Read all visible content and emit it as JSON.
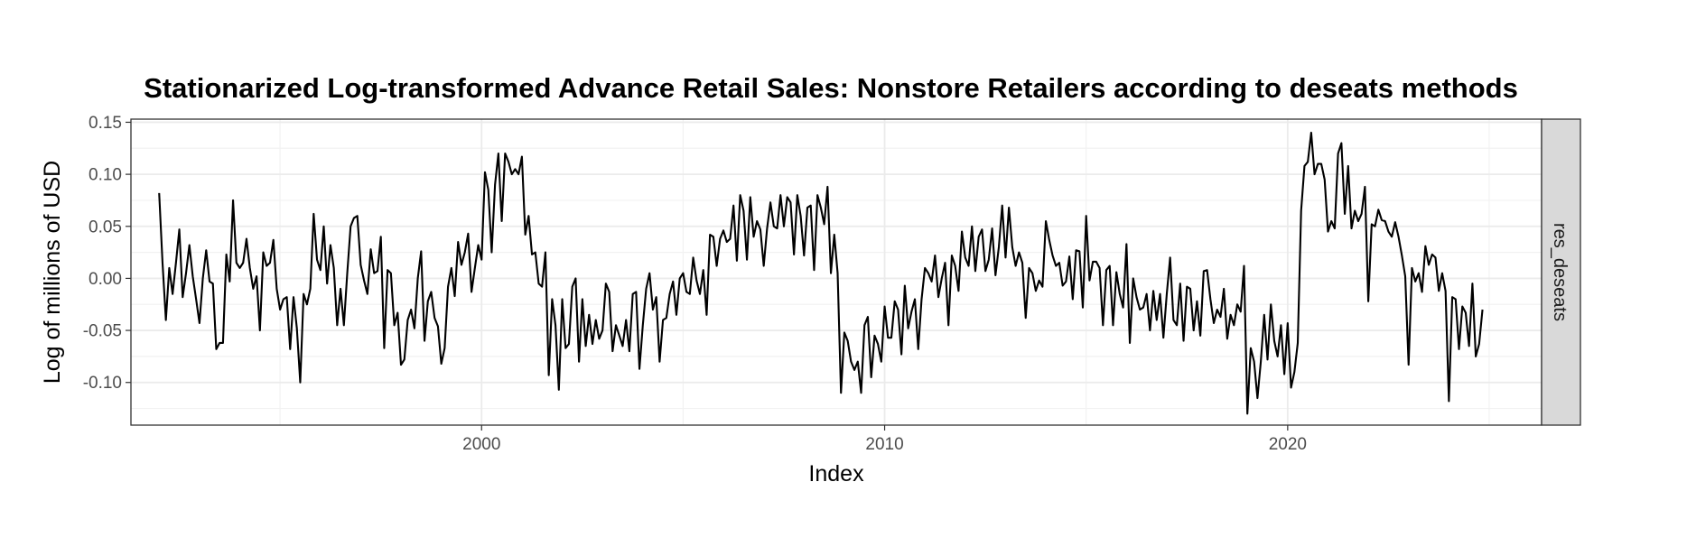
{
  "chart_data": {
    "type": "line",
    "title": "Stationarized Log-transformed Advance Retail Sales: Nonstore Retailers according to deseats methods",
    "xlabel": "Index",
    "ylabel": "Log of millions of USD",
    "facet_label": "res_deseats",
    "x_ticks": [
      2000,
      2010,
      2020
    ],
    "y_ticks": [
      -0.1,
      -0.05,
      0.0,
      0.05,
      0.1,
      0.15
    ],
    "y_tick_labels": [
      "-0.10",
      "-0.05",
      "0.00",
      "0.05",
      "0.10",
      "0.15"
    ],
    "xlim": [
      1991.3,
      2026.3
    ],
    "ylim": [
      -0.141,
      0.153
    ],
    "grid": true,
    "theme": "bw",
    "colors": {
      "line": "#000000",
      "grid": "#ebebeb",
      "strip_fill": "#d9d9d9",
      "border": "#333333"
    },
    "series": [
      {
        "start": 1992.0,
        "step": 0.0833333,
        "values": [
          0.082,
          0.015,
          -0.04,
          0.01,
          -0.015,
          0.015,
          0.047,
          -0.018,
          0.005,
          0.032,
          0.002,
          -0.02,
          -0.043,
          0.0,
          0.027,
          -0.003,
          -0.005,
          -0.068,
          -0.062,
          -0.062,
          0.023,
          -0.003,
          0.075,
          0.015,
          0.01,
          0.015,
          0.038,
          0.01,
          -0.01,
          0.002,
          -0.05,
          0.025,
          0.012,
          0.015,
          0.037,
          -0.01,
          -0.03,
          -0.02,
          -0.018,
          -0.068,
          -0.018,
          -0.048,
          -0.1,
          -0.015,
          -0.025,
          -0.01,
          0.062,
          0.018,
          0.008,
          0.05,
          -0.005,
          0.032,
          0.01,
          -0.045,
          -0.01,
          -0.045,
          0.005,
          0.05,
          0.058,
          0.06,
          0.013,
          -0.002,
          -0.015,
          0.028,
          0.005,
          0.007,
          0.04,
          -0.067,
          0.008,
          0.005,
          -0.045,
          -0.033,
          -0.083,
          -0.078,
          -0.04,
          -0.03,
          -0.048,
          0.0,
          0.026,
          -0.06,
          -0.022,
          -0.013,
          -0.038,
          -0.046,
          -0.082,
          -0.067,
          -0.008,
          0.01,
          -0.017,
          0.035,
          0.013,
          0.025,
          0.043,
          -0.013,
          0.01,
          0.032,
          0.018,
          0.102,
          0.085,
          0.025,
          0.09,
          0.12,
          0.055,
          0.12,
          0.112,
          0.1,
          0.105,
          0.1,
          0.117,
          0.042,
          0.06,
          0.023,
          0.025,
          -0.005,
          -0.008,
          0.025,
          -0.093,
          -0.02,
          -0.045,
          -0.107,
          -0.02,
          -0.067,
          -0.063,
          -0.008,
          0.0,
          -0.08,
          -0.02,
          -0.065,
          -0.035,
          -0.063,
          -0.04,
          -0.058,
          -0.05,
          -0.005,
          -0.013,
          -0.07,
          -0.045,
          -0.055,
          -0.065,
          -0.04,
          -0.07,
          -0.015,
          -0.013,
          -0.087,
          -0.045,
          -0.01,
          0.005,
          -0.03,
          -0.018,
          -0.08,
          -0.04,
          -0.038,
          -0.015,
          -0.003,
          -0.035,
          0.0,
          0.005,
          -0.013,
          -0.015,
          0.02,
          -0.002,
          -0.015,
          0.008,
          -0.035,
          0.042,
          0.04,
          0.012,
          0.038,
          0.046,
          0.035,
          0.038,
          0.07,
          0.017,
          0.08,
          0.065,
          0.018,
          0.078,
          0.04,
          0.055,
          0.047,
          0.012,
          0.048,
          0.073,
          0.05,
          0.048,
          0.08,
          0.05,
          0.078,
          0.073,
          0.023,
          0.08,
          0.06,
          0.022,
          0.068,
          0.07,
          0.008,
          0.08,
          0.068,
          0.052,
          0.088,
          0.005,
          0.042,
          0.005,
          -0.11,
          -0.052,
          -0.06,
          -0.08,
          -0.088,
          -0.08,
          -0.11,
          -0.045,
          -0.037,
          -0.095,
          -0.055,
          -0.063,
          -0.08,
          -0.027,
          -0.057,
          -0.057,
          -0.022,
          -0.03,
          -0.073,
          -0.007,
          -0.048,
          -0.032,
          -0.02,
          -0.068,
          -0.02,
          0.01,
          0.005,
          -0.003,
          0.022,
          -0.018,
          0.0,
          0.015,
          -0.045,
          0.022,
          0.012,
          -0.012,
          0.045,
          0.02,
          0.012,
          0.05,
          0.007,
          0.04,
          0.047,
          0.007,
          0.018,
          0.048,
          0.003,
          0.03,
          0.07,
          0.02,
          0.068,
          0.03,
          0.012,
          0.025,
          0.015,
          -0.038,
          0.01,
          0.005,
          -0.012,
          -0.002,
          -0.008,
          0.055,
          0.037,
          0.022,
          0.012,
          0.015,
          -0.007,
          -0.003,
          0.021,
          -0.02,
          0.027,
          0.026,
          -0.028,
          0.06,
          -0.002,
          0.016,
          0.016,
          0.01,
          -0.045,
          0.008,
          0.012,
          -0.045,
          0.006,
          -0.015,
          -0.028,
          0.033,
          -0.062,
          0.0,
          -0.018,
          -0.03,
          -0.028,
          -0.015,
          -0.05,
          -0.012,
          -0.04,
          -0.015,
          -0.057,
          -0.015,
          0.02,
          -0.04,
          -0.045,
          -0.005,
          -0.06,
          -0.008,
          -0.01,
          -0.05,
          -0.022,
          -0.055,
          0.007,
          0.008,
          -0.02,
          -0.043,
          -0.03,
          -0.037,
          -0.01,
          -0.058,
          -0.035,
          -0.045,
          -0.025,
          -0.032,
          0.012,
          -0.13,
          -0.067,
          -0.08,
          -0.115,
          -0.08,
          -0.035,
          -0.078,
          -0.025,
          -0.06,
          -0.075,
          -0.045,
          -0.092,
          -0.043,
          -0.105,
          -0.09,
          -0.062,
          0.065,
          0.108,
          0.112,
          0.14,
          0.1,
          0.11,
          0.11,
          0.095,
          0.045,
          0.055,
          0.048,
          0.12,
          0.13,
          0.062,
          0.108,
          0.048,
          0.065,
          0.055,
          0.062,
          0.088,
          -0.022,
          0.052,
          0.05,
          0.066,
          0.056,
          0.055,
          0.045,
          0.04,
          0.054,
          0.04,
          0.022,
          0.002,
          -0.083,
          0.01,
          -0.003,
          0.005,
          -0.013,
          0.031,
          0.013,
          0.023,
          0.02,
          -0.012,
          0.005,
          -0.012,
          -0.118,
          -0.018,
          -0.02,
          -0.068,
          -0.027,
          -0.033,
          -0.065,
          -0.005,
          -0.075,
          -0.063,
          -0.03
        ]
      }
    ]
  }
}
